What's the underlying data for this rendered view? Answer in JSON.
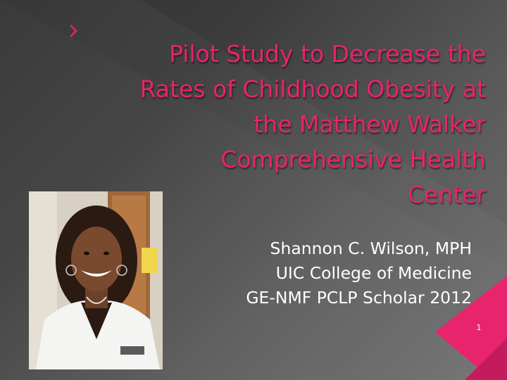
{
  "slide": {
    "title_lines": [
      "Pilot Study to Decrease the",
      "Rates of Childhood Obesity at",
      "the Matthew Walker",
      "Comprehensive Health",
      "Center"
    ],
    "subtitle_lines": [
      "Shannon C. Wilson, MPH",
      "UIC College of Medicine",
      "GE-NMF PCLP Scholar 2012"
    ],
    "slide_number": "1"
  },
  "colors": {
    "title": "#e8246c",
    "accent": "#e8246c",
    "background_dark": "#303030",
    "background_light": "#707070",
    "subtitle": "#ffffff"
  },
  "icons": {
    "bullet": "chevron-right-icon"
  }
}
